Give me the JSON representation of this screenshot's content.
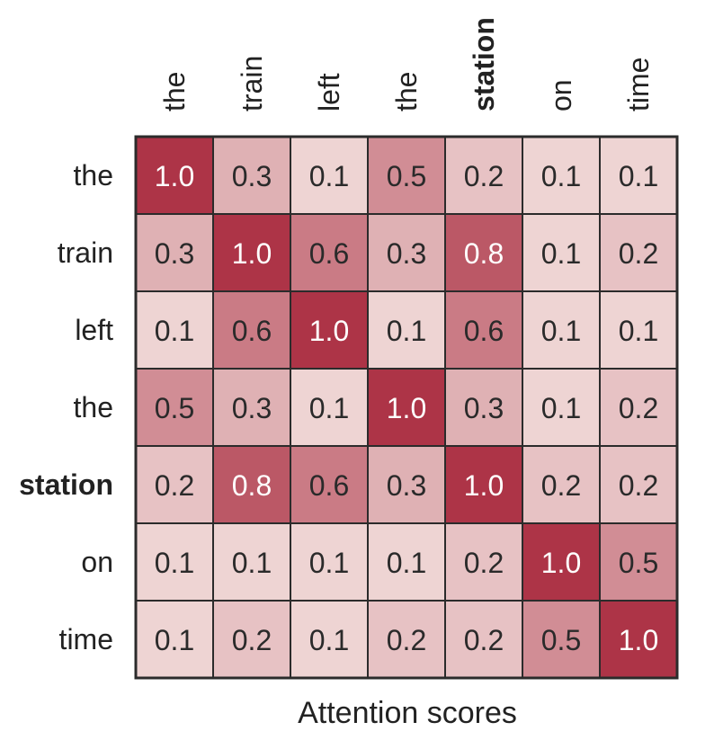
{
  "chart_data": {
    "type": "heatmap",
    "rows": [
      "the",
      "train",
      "left",
      "the",
      "station",
      "on",
      "time"
    ],
    "columns": [
      "the",
      "train",
      "left",
      "the",
      "station",
      "on",
      "time"
    ],
    "highlighted_token": "station",
    "values": [
      [
        1.0,
        0.3,
        0.1,
        0.5,
        0.2,
        0.1,
        0.1
      ],
      [
        0.3,
        1.0,
        0.6,
        0.3,
        0.8,
        0.1,
        0.2
      ],
      [
        0.1,
        0.6,
        1.0,
        0.1,
        0.6,
        0.1,
        0.1
      ],
      [
        0.5,
        0.3,
        0.1,
        1.0,
        0.3,
        0.1,
        0.2
      ],
      [
        0.2,
        0.8,
        0.6,
        0.3,
        1.0,
        0.2,
        0.2
      ],
      [
        0.1,
        0.1,
        0.1,
        0.1,
        0.2,
        1.0,
        0.5
      ],
      [
        0.1,
        0.2,
        0.1,
        0.2,
        0.2,
        0.5,
        1.0
      ]
    ],
    "xlabel": "Attention scores",
    "value_range": [
      0.0,
      1.0
    ],
    "colormap": {
      "low": "#f5e6e3",
      "high": "#ad3447"
    },
    "label_colors": {
      "dark_text": "#2a2a2a",
      "light_text": "#ffffff"
    },
    "light_text_threshold": 0.75,
    "grid": false
  }
}
